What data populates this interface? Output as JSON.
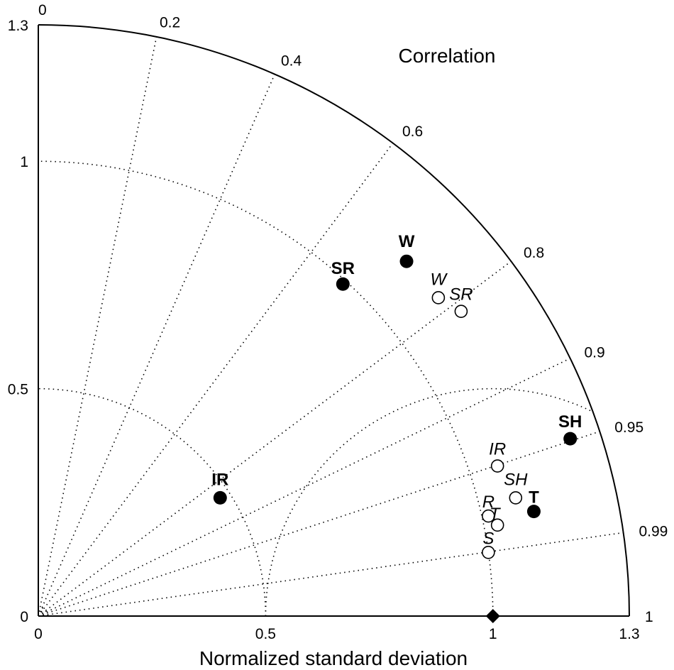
{
  "chart_data": {
    "type": "taylor-diagram",
    "xlabel": "Normalized standard deviation",
    "correlation_label": "Correlation",
    "std_max": 1.3,
    "axis_tick_labels": {
      "x": [
        "0",
        "0.5",
        "1",
        "1.3"
      ],
      "y": [
        "0",
        "0.5",
        "1",
        "1.3"
      ]
    },
    "std_ticks": [
      0,
      0.5,
      1,
      1.3
    ],
    "std_grid_arcs": [
      0.5,
      1
    ],
    "rms_arcs_about_ref": [
      0.5
    ],
    "correlation_ticks": [
      {
        "value": 0,
        "label": "0"
      },
      {
        "value": 0.2,
        "label": "0.2"
      },
      {
        "value": 0.4,
        "label": "0.4"
      },
      {
        "value": 0.6,
        "label": "0.6"
      },
      {
        "value": 0.8,
        "label": "0.8"
      },
      {
        "value": 0.9,
        "label": "0.9"
      },
      {
        "value": 0.95,
        "label": "0.95"
      },
      {
        "value": 0.99,
        "label": "0.99"
      },
      {
        "value": 1,
        "label": "1"
      }
    ],
    "reference": {
      "std": 1.0,
      "corr": 1.0,
      "marker": "diamond"
    },
    "series": [
      {
        "marker": "filled-circle",
        "points": [
          {
            "label": "W",
            "x": 0.81,
            "y": 0.78
          },
          {
            "label": "SR",
            "x": 0.67,
            "y": 0.73
          },
          {
            "label": "SH",
            "x": 1.17,
            "y": 0.39
          },
          {
            "label": "IR",
            "x": 0.4,
            "y": 0.26
          },
          {
            "label": "T",
            "x": 1.09,
            "y": 0.23
          }
        ]
      },
      {
        "marker": "open-circle",
        "points": [
          {
            "label": "W",
            "x": 0.88,
            "y": 0.7
          },
          {
            "label": "SR",
            "x": 0.93,
            "y": 0.67
          },
          {
            "label": "IR",
            "x": 1.01,
            "y": 0.33
          },
          {
            "label": "SH",
            "x": 1.05,
            "y": 0.26
          },
          {
            "label": "R",
            "x": 0.99,
            "y": 0.22
          },
          {
            "label": "T",
            "x": 1.01,
            "y": 0.2
          },
          {
            "label": "S",
            "x": 0.99,
            "y": 0.14
          }
        ]
      }
    ]
  }
}
